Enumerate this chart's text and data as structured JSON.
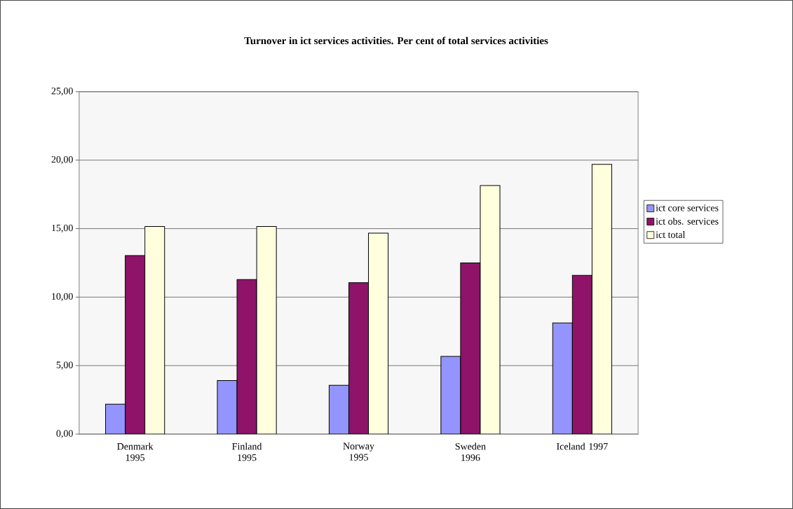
{
  "chart_data": {
    "type": "bar",
    "title": "Turnover in ict services activities. Per cent of total services activities",
    "categories": [
      "Denmark 1995",
      "Finland 1995",
      "Norway 1995",
      "Sweden 1996",
      "Iceland 1997"
    ],
    "series": [
      {
        "name": "ict core services",
        "color": "#9494ff",
        "values": [
          2.19,
          3.91,
          3.57,
          5.67,
          8.11
        ]
      },
      {
        "name": "ict obs. services",
        "color": "#8f1369",
        "values": [
          13.03,
          11.29,
          11.05,
          12.5,
          11.59
        ]
      },
      {
        "name": "ict total",
        "color": "#ffffdd",
        "values": [
          15.16,
          15.16,
          14.67,
          18.15,
          19.69
        ]
      }
    ],
    "ylim": [
      0,
      25
    ],
    "yticks": [
      {
        "value": 0,
        "label": "0,00"
      },
      {
        "value": 5,
        "label": "5,00"
      },
      {
        "value": 10,
        "label": "10,00"
      },
      {
        "value": 15,
        "label": "15,00"
      },
      {
        "value": 20,
        "label": "20,00"
      },
      {
        "value": 25,
        "label": "25,00"
      }
    ],
    "grid": "y",
    "legend": "right"
  }
}
